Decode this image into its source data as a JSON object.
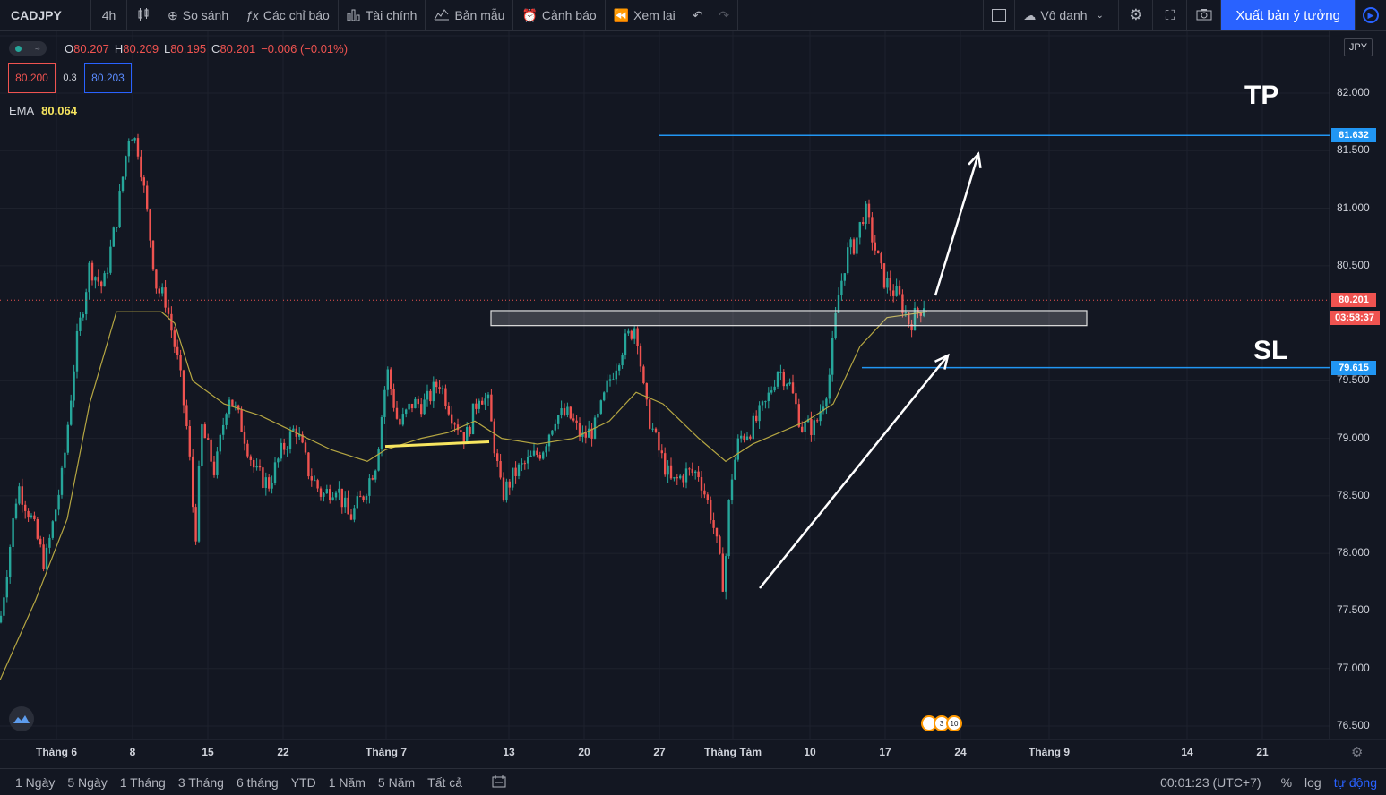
{
  "toolbar": {
    "symbol": "CADJPY",
    "interval": "4h",
    "compare": "So sánh",
    "indicators": "Các chỉ báo",
    "financials": "Tài chính",
    "templates": "Bản mẫu",
    "alerts": "Cảnh báo",
    "replay": "Xem lại",
    "layout_name": "Vô danh",
    "publish": "Xuất bản ý tưởng"
  },
  "legend": {
    "o_label": "O",
    "o": "80.207",
    "h_label": "H",
    "h": "80.209",
    "l_label": "L",
    "l": "80.195",
    "c_label": "C",
    "c": "80.201",
    "change": "−0.006 (−0.01%)",
    "bid": "80.200",
    "spread": "0.3",
    "ask": "80.203",
    "ema_label": "EMA",
    "ema_value": "80.064"
  },
  "annotations": {
    "tp": "TP",
    "sl": "SL"
  },
  "price_axis": {
    "currency": "JPY",
    "labels": [
      "82.000",
      "81.500",
      "81.000",
      "80.500",
      "79.500",
      "79.000",
      "78.500",
      "78.000",
      "77.500",
      "77.000",
      "76.500"
    ],
    "tp_tag": "81.632",
    "last_tag": "80.201",
    "countdown": "03:58:37",
    "sl_tag": "79.615"
  },
  "time_axis": [
    "Tháng 6",
    "8",
    "15",
    "22",
    "Tháng 7",
    "13",
    "20",
    "27",
    "Tháng Tám",
    "10",
    "17",
    "24",
    "Tháng 9",
    "14",
    "21"
  ],
  "events": [
    "3",
    "10"
  ],
  "bottom": {
    "ranges": [
      "1 Ngày",
      "5 Ngày",
      "1 Tháng",
      "3 Tháng",
      "6 tháng",
      "YTD",
      "1 Năm",
      "5 Năm",
      "Tất cả"
    ],
    "clock": "00:01:23 (UTC+7)",
    "percent": "%",
    "log": "log",
    "auto": "tự động"
  },
  "colors": {
    "up": "#26a69a",
    "down": "#ef5350",
    "ema": "#b5a642",
    "level": "#2196f3",
    "yellow_line": "#f7e55f",
    "accent": "#2962ff"
  },
  "chart_data": {
    "type": "candlestick",
    "symbol": "CADJPY",
    "interval": "4h",
    "ylim": [
      76.4,
      82.5
    ],
    "levels": {
      "tp": 81.632,
      "last": 80.201,
      "sl": 79.615
    },
    "support_zone": [
      79.98,
      80.11
    ],
    "path": [
      [
        0,
        77.4
      ],
      [
        20,
        78.6
      ],
      [
        35,
        78.3
      ],
      [
        50,
        77.9
      ],
      [
        70,
        78.7
      ],
      [
        85,
        79.8
      ],
      [
        100,
        80.5
      ],
      [
        115,
        80.3
      ],
      [
        130,
        80.9
      ],
      [
        145,
        81.7
      ],
      [
        155,
        81.5
      ],
      [
        165,
        80.9
      ],
      [
        175,
        80.3
      ],
      [
        185,
        80.2
      ],
      [
        200,
        79.6
      ],
      [
        210,
        79.0
      ],
      [
        218,
        78.1
      ],
      [
        225,
        79.1
      ],
      [
        240,
        78.7
      ],
      [
        255,
        79.4
      ],
      [
        270,
        79.1
      ],
      [
        285,
        78.7
      ],
      [
        300,
        78.6
      ],
      [
        315,
        78.9
      ],
      [
        330,
        79.1
      ],
      [
        345,
        78.7
      ],
      [
        360,
        78.5
      ],
      [
        375,
        78.6
      ],
      [
        390,
        78.3
      ],
      [
        405,
        78.5
      ],
      [
        420,
        78.8
      ],
      [
        432,
        79.6
      ],
      [
        445,
        79.1
      ],
      [
        460,
        79.3
      ],
      [
        475,
        79.3
      ],
      [
        490,
        79.5
      ],
      [
        505,
        79.2
      ],
      [
        520,
        79.0
      ],
      [
        535,
        79.4
      ],
      [
        545,
        79.3
      ],
      [
        560,
        78.5
      ],
      [
        575,
        78.7
      ],
      [
        590,
        78.8
      ],
      [
        605,
        78.9
      ],
      [
        620,
        79.2
      ],
      [
        635,
        79.2
      ],
      [
        650,
        79.0
      ],
      [
        665,
        79.1
      ],
      [
        680,
        79.5
      ],
      [
        695,
        79.8
      ],
      [
        710,
        80.0
      ],
      [
        720,
        79.3
      ],
      [
        735,
        78.9
      ],
      [
        750,
        78.6
      ],
      [
        765,
        78.7
      ],
      [
        780,
        78.7
      ],
      [
        795,
        78.3
      ],
      [
        808,
        77.7
      ],
      [
        815,
        78.6
      ],
      [
        825,
        79.0
      ],
      [
        840,
        79.1
      ],
      [
        855,
        79.3
      ],
      [
        868,
        79.6
      ],
      [
        880,
        79.5
      ],
      [
        895,
        79.1
      ],
      [
        910,
        79.1
      ],
      [
        925,
        79.5
      ],
      [
        935,
        80.2
      ],
      [
        945,
        80.6
      ],
      [
        955,
        80.7
      ],
      [
        965,
        81.0
      ],
      [
        975,
        80.7
      ],
      [
        985,
        80.4
      ],
      [
        995,
        80.3
      ],
      [
        1005,
        80.2
      ],
      [
        1015,
        80.0
      ],
      [
        1025,
        80.1
      ],
      [
        1033,
        80.2
      ]
    ],
    "ema_path": [
      [
        0,
        76.9
      ],
      [
        40,
        77.6
      ],
      [
        75,
        78.3
      ],
      [
        100,
        79.3
      ],
      [
        130,
        80.1
      ],
      [
        160,
        80.1
      ],
      [
        180,
        80.1
      ],
      [
        195,
        80.0
      ],
      [
        215,
        79.5
      ],
      [
        250,
        79.3
      ],
      [
        290,
        79.2
      ],
      [
        330,
        79.05
      ],
      [
        370,
        78.9
      ],
      [
        410,
        78.8
      ],
      [
        430,
        78.9
      ],
      [
        470,
        79.0
      ],
      [
        500,
        79.05
      ],
      [
        530,
        79.15
      ],
      [
        560,
        79.0
      ],
      [
        600,
        78.95
      ],
      [
        640,
        79.0
      ],
      [
        680,
        79.15
      ],
      [
        710,
        79.4
      ],
      [
        740,
        79.3
      ],
      [
        780,
        79.0
      ],
      [
        810,
        78.8
      ],
      [
        840,
        78.95
      ],
      [
        870,
        79.05
      ],
      [
        900,
        79.15
      ],
      [
        930,
        79.3
      ],
      [
        960,
        79.8
      ],
      [
        990,
        80.05
      ],
      [
        1035,
        80.1
      ]
    ]
  }
}
